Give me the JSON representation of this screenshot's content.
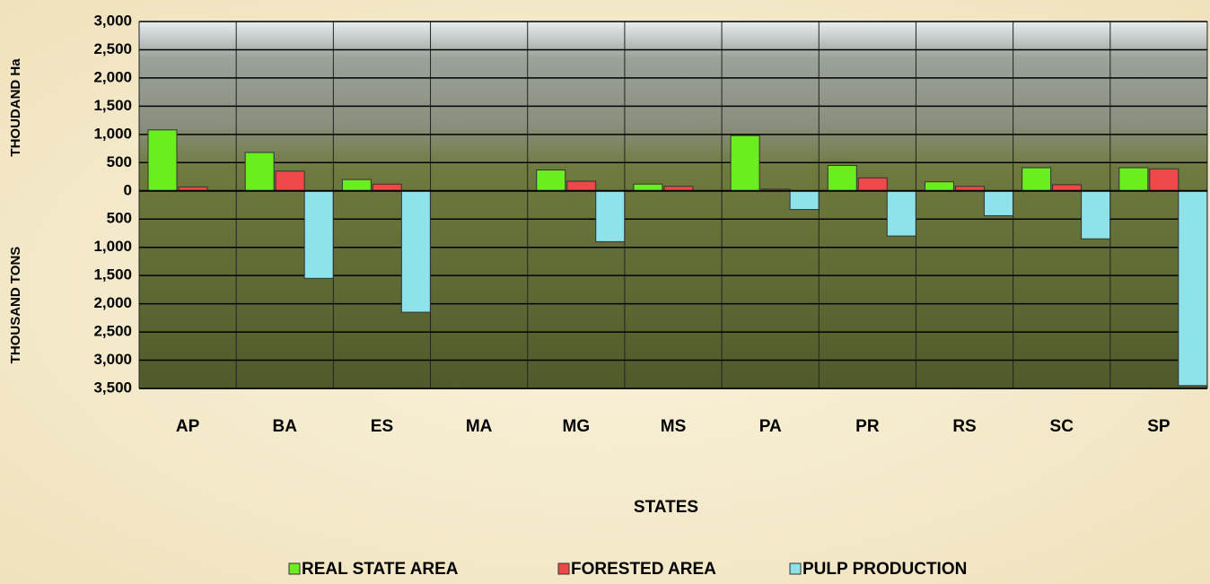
{
  "chart_data": {
    "type": "bar",
    "x_label": "STATES",
    "y_labels": [
      "THOUDAND Ha",
      "THOUSAND TONS"
    ],
    "categories": [
      "AP",
      "BA",
      "ES",
      "MA",
      "MG",
      "MS",
      "PA",
      "PR",
      "RS",
      "SC",
      "SP"
    ],
    "series": [
      {
        "name": "REAL STATE AREA",
        "color": "#6aee1e",
        "values": [
          1080,
          680,
          200,
          0,
          370,
          120,
          980,
          450,
          160,
          410,
          410
        ]
      },
      {
        "name": "FORESTED AREA",
        "color": "#ee4848",
        "values": [
          70,
          350,
          120,
          0,
          170,
          80,
          30,
          230,
          80,
          110,
          390
        ]
      },
      {
        "name": "PULP PRODUCTION",
        "color": "#8ee2ea",
        "values": [
          0,
          -1550,
          -2150,
          0,
          -900,
          0,
          -330,
          -800,
          -440,
          -850,
          -3450
        ]
      }
    ],
    "ylim": [
      -3500,
      3000
    ],
    "yticks": [
      {
        "value": 3000,
        "label": "3,000"
      },
      {
        "value": 2500,
        "label": "2,500"
      },
      {
        "value": 2000,
        "label": "2,000"
      },
      {
        "value": 1500,
        "label": "1,500"
      },
      {
        "value": 1000,
        "label": "1,000"
      },
      500,
      0,
      {
        "value": -500,
        "label": "500"
      },
      {
        "value": -1000,
        "label": "1,000"
      },
      {
        "value": -1500,
        "label": "1,500"
      },
      {
        "value": -2000,
        "label": "2,000"
      },
      {
        "value": -2500,
        "label": "2,500"
      },
      {
        "value": -3000,
        "label": "3,000"
      },
      {
        "value": -3500,
        "label": "3,500"
      }
    ],
    "grid": true
  }
}
